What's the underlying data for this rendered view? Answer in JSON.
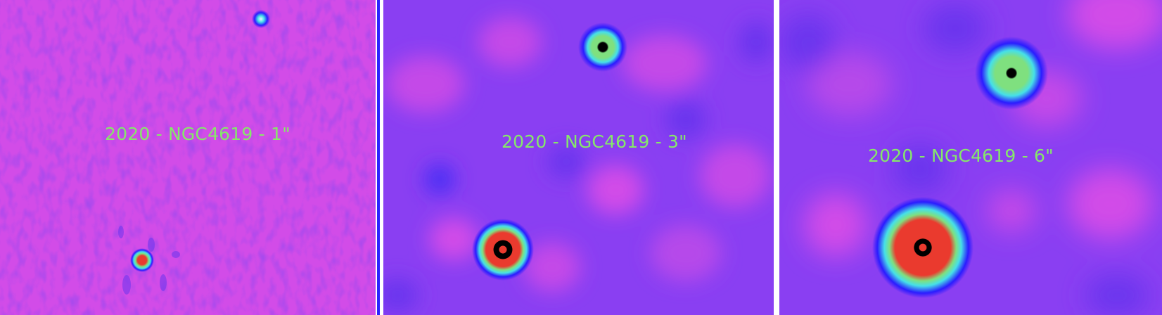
{
  "panels": [
    {
      "label": "2020 - NGC4619 - 1\""
    },
    {
      "label": "2020 - NGC4619 - 3\""
    },
    {
      "label": "2020 - NGC4619 - 6\""
    }
  ],
  "colors": {
    "background_magenta": "#d24ce8",
    "background_violet": "#8a3ff2",
    "noise_blue": "#5a34f4",
    "source_red": "#ea3a2e",
    "source_green": "#7fe07f",
    "source_cyan": "#46e0e8",
    "source_blue": "#2a1cff",
    "label_green": "#86e86a"
  }
}
